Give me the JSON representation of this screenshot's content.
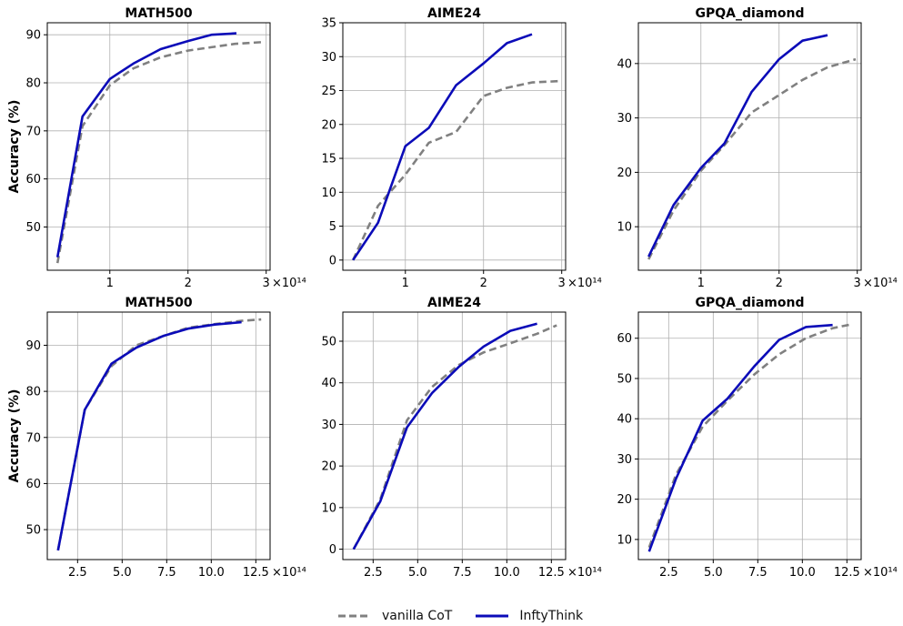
{
  "figure": {
    "legend": {
      "placement": "bottom-center",
      "items": [
        {
          "label": "vanilla CoT",
          "color": "#808080",
          "style": "dashed"
        },
        {
          "label": "InftyThink",
          "color": "#0b0bb8",
          "style": "solid"
        }
      ]
    }
  },
  "chart_data": [
    {
      "type": "line",
      "title": "MATH500",
      "xlabel": "",
      "ylabel": "Accuracy (%)",
      "x_multiplier_label": "×10¹⁴",
      "xlim": [
        0.2,
        3.05
      ],
      "ylim": [
        41,
        92.5
      ],
      "xticks": [
        1,
        2,
        3
      ],
      "xtick_labels": [
        "1",
        "2",
        "3"
      ],
      "yticks": [
        50,
        60,
        70,
        80,
        90
      ],
      "ytick_labels": [
        "50",
        "60",
        "70",
        "80",
        "90"
      ],
      "grid": true,
      "series": [
        {
          "name": "vanilla CoT",
          "color": "#808080",
          "style": "dashed",
          "x": [
            0.33,
            0.65,
            1.0,
            1.3,
            1.65,
            2.0,
            2.3,
            2.6,
            2.98
          ],
          "y": [
            42.5,
            71.0,
            79.5,
            83.0,
            85.3,
            86.7,
            87.4,
            88.1,
            88.5
          ]
        },
        {
          "name": "InftyThink",
          "color": "#0b0bb8",
          "style": "solid",
          "x": [
            0.33,
            0.65,
            1.0,
            1.3,
            1.65,
            2.0,
            2.3,
            2.62
          ],
          "y": [
            43.7,
            73.0,
            80.8,
            84.0,
            87.0,
            88.7,
            90.0,
            90.3
          ]
        }
      ]
    },
    {
      "type": "line",
      "title": "AIME24",
      "xlabel": "",
      "ylabel": "",
      "x_multiplier_label": "×10¹⁴",
      "xlim": [
        0.2,
        3.05
      ],
      "ylim": [
        -1.5,
        35
      ],
      "xticks": [
        1,
        2,
        3
      ],
      "xtick_labels": [
        "1",
        "2",
        "3"
      ],
      "yticks": [
        0,
        5,
        10,
        15,
        20,
        25,
        30,
        35
      ],
      "ytick_labels": [
        "0",
        "5",
        "10",
        "15",
        "20",
        "25",
        "30",
        "35"
      ],
      "grid": true,
      "series": [
        {
          "name": "vanilla CoT",
          "color": "#808080",
          "style": "dashed",
          "x": [
            0.33,
            0.65,
            1.0,
            1.3,
            1.65,
            2.0,
            2.3,
            2.62,
            2.98
          ],
          "y": [
            0.0,
            8.0,
            12.6,
            17.3,
            18.9,
            24.2,
            25.4,
            26.2,
            26.4
          ]
        },
        {
          "name": "InftyThink",
          "color": "#0b0bb8",
          "style": "solid",
          "x": [
            0.33,
            0.65,
            1.0,
            1.3,
            1.65,
            2.0,
            2.3,
            2.62
          ],
          "y": [
            0.0,
            5.5,
            16.8,
            19.5,
            25.8,
            29.0,
            32.0,
            33.3
          ]
        }
      ]
    },
    {
      "type": "line",
      "title": "GPQA_diamond",
      "xlabel": "",
      "ylabel": "",
      "x_multiplier_label": "×10¹⁴",
      "xlim": [
        0.2,
        3.05
      ],
      "ylim": [
        2,
        47.5
      ],
      "xticks": [
        1,
        2,
        3
      ],
      "xtick_labels": [
        "1",
        "2",
        "3"
      ],
      "yticks": [
        10,
        20,
        30,
        40
      ],
      "ytick_labels": [
        "10",
        "20",
        "30",
        "40"
      ],
      "grid": true,
      "series": [
        {
          "name": "vanilla CoT",
          "color": "#808080",
          "style": "dashed",
          "x": [
            0.33,
            0.65,
            1.0,
            1.3,
            1.65,
            2.0,
            2.3,
            2.62,
            2.98
          ],
          "y": [
            4.0,
            13.0,
            20.3,
            25.0,
            31.0,
            34.2,
            37.0,
            39.3,
            40.8
          ]
        },
        {
          "name": "InftyThink",
          "color": "#0b0bb8",
          "style": "solid",
          "x": [
            0.33,
            0.65,
            1.0,
            1.3,
            1.65,
            2.0,
            2.3,
            2.62
          ],
          "y": [
            4.5,
            14.0,
            20.8,
            25.3,
            34.8,
            40.8,
            44.2,
            45.2
          ]
        }
      ]
    },
    {
      "type": "line",
      "title": "MATH500",
      "xlabel": "",
      "ylabel": "Accuracy (%)",
      "x_multiplier_label": "×10¹⁴",
      "xlim": [
        0.8,
        13.3
      ],
      "ylim": [
        43.5,
        97.2
      ],
      "xticks": [
        2.5,
        5.0,
        7.5,
        10.0,
        12.5
      ],
      "xtick_labels": [
        "2.5",
        "5.0",
        "7.5",
        "10.0",
        "12.5"
      ],
      "yticks": [
        50,
        60,
        70,
        80,
        90
      ],
      "ytick_labels": [
        "50",
        "60",
        "70",
        "80",
        "90"
      ],
      "grid": true,
      "series": [
        {
          "name": "vanilla CoT",
          "color": "#808080",
          "style": "dashed",
          "x": [
            1.4,
            2.9,
            4.4,
            5.8,
            7.3,
            8.7,
            10.2,
            11.7,
            12.8
          ],
          "y": [
            45.5,
            76.0,
            85.5,
            90.0,
            92.0,
            93.8,
            94.6,
            95.3,
            95.6
          ]
        },
        {
          "name": "InftyThink",
          "color": "#0b0bb8",
          "style": "solid",
          "x": [
            1.4,
            2.9,
            4.4,
            5.8,
            7.3,
            8.7,
            10.2,
            11.7
          ],
          "y": [
            45.5,
            76.0,
            86.0,
            89.5,
            92.0,
            93.6,
            94.5,
            95.0
          ]
        }
      ]
    },
    {
      "type": "line",
      "title": "AIME24",
      "xlabel": "",
      "ylabel": "",
      "x_multiplier_label": "×10¹⁴",
      "xlim": [
        0.8,
        13.3
      ],
      "ylim": [
        -2.5,
        57
      ],
      "xticks": [
        2.5,
        5.0,
        7.5,
        10.0,
        12.5
      ],
      "xtick_labels": [
        "2.5",
        "5.0",
        "7.5",
        "10.0",
        "12.5"
      ],
      "yticks": [
        0,
        10,
        20,
        30,
        40,
        50
      ],
      "ytick_labels": [
        "0",
        "10",
        "20",
        "30",
        "40",
        "50"
      ],
      "grid": true,
      "series": [
        {
          "name": "vanilla CoT",
          "color": "#808080",
          "style": "dashed",
          "x": [
            1.4,
            2.9,
            4.4,
            5.8,
            7.3,
            8.7,
            10.2,
            11.7,
            12.8
          ],
          "y": [
            0.0,
            12.0,
            31.0,
            39.0,
            44.3,
            47.3,
            49.5,
            51.8,
            53.8
          ]
        },
        {
          "name": "InftyThink",
          "color": "#0b0bb8",
          "style": "solid",
          "x": [
            1.4,
            2.9,
            4.4,
            5.8,
            7.3,
            8.7,
            10.2,
            11.7
          ],
          "y": [
            0.0,
            11.5,
            29.3,
            37.5,
            43.8,
            48.7,
            52.5,
            54.2
          ]
        }
      ]
    },
    {
      "type": "line",
      "title": "GPQA_diamond",
      "xlabel": "",
      "ylabel": "",
      "x_multiplier_label": "×10¹⁴",
      "xlim": [
        0.8,
        13.3
      ],
      "ylim": [
        5,
        66.5
      ],
      "xticks": [
        2.5,
        5.0,
        7.5,
        10.0,
        12.5
      ],
      "xtick_labels": [
        "2.5",
        "5.0",
        "7.5",
        "10.0",
        "12.5"
      ],
      "yticks": [
        10,
        20,
        30,
        40,
        50,
        60
      ],
      "ytick_labels": [
        "10",
        "20",
        "30",
        "40",
        "50",
        "60"
      ],
      "grid": true,
      "series": [
        {
          "name": "vanilla CoT",
          "color": "#808080",
          "style": "dashed",
          "x": [
            1.4,
            2.9,
            4.4,
            5.8,
            7.3,
            8.7,
            10.2,
            11.7,
            12.8
          ],
          "y": [
            8.0,
            26.0,
            38.0,
            44.5,
            51.0,
            56.0,
            60.0,
            62.5,
            63.5
          ]
        },
        {
          "name": "InftyThink",
          "color": "#0b0bb8",
          "style": "solid",
          "x": [
            1.4,
            2.9,
            4.4,
            5.8,
            7.3,
            8.7,
            10.2,
            11.7
          ],
          "y": [
            7.0,
            25.0,
            39.5,
            45.0,
            53.0,
            59.6,
            62.8,
            63.3
          ]
        }
      ]
    }
  ]
}
